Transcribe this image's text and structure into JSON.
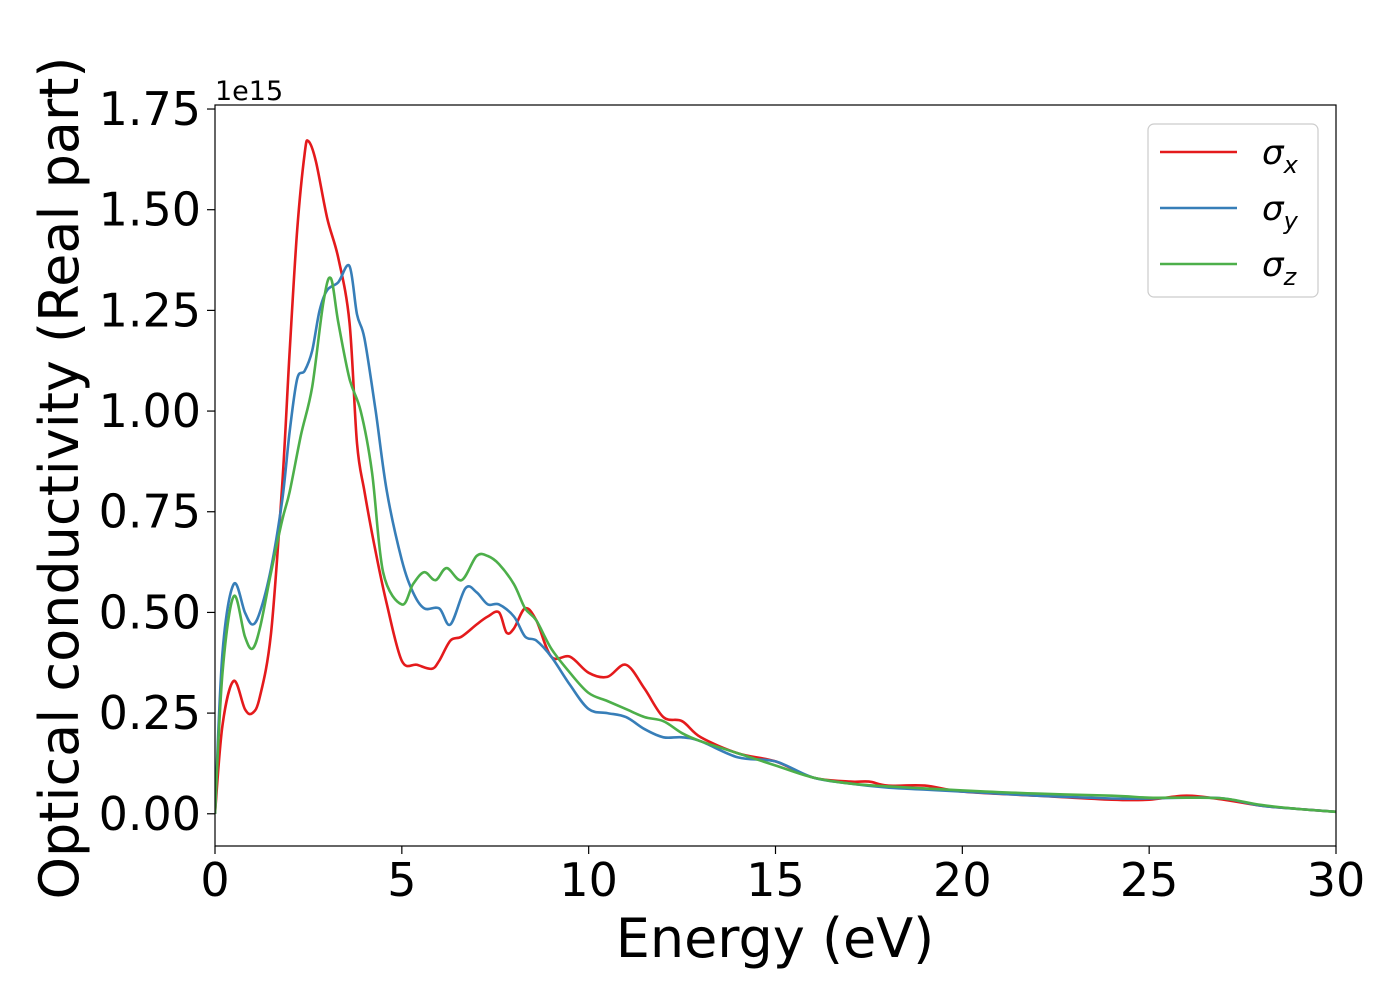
{
  "chart_data": {
    "type": "line",
    "xlabel": "Energy (eV)",
    "ylabel": "Optical conductivity (Real part)",
    "y_offset_label": "1e15",
    "xlim": [
      0,
      30
    ],
    "ylim": [
      -0.08,
      1.76
    ],
    "x_ticks": [
      0,
      5,
      10,
      15,
      20,
      25,
      30
    ],
    "x_tick_labels": [
      "0",
      "5",
      "10",
      "15",
      "20",
      "25",
      "30"
    ],
    "y_ticks": [
      0.0,
      0.25,
      0.5,
      0.75,
      1.0,
      1.25,
      1.5,
      1.75
    ],
    "y_tick_labels": [
      "0.00",
      "0.25",
      "0.50",
      "0.75",
      "1.00",
      "1.25",
      "1.50",
      "1.75"
    ],
    "grid": false,
    "legend_position": "top-right",
    "legend": [
      {
        "base": "σ",
        "sub": "x"
      },
      {
        "base": "σ",
        "sub": "y"
      },
      {
        "base": "σ",
        "sub": "z"
      }
    ],
    "series": [
      {
        "color": "#e41a1c",
        "x": [
          0,
          0.2,
          0.5,
          0.8,
          1.0,
          1.2,
          1.5,
          1.8,
          2.0,
          2.2,
          2.4,
          2.5,
          2.7,
          3.0,
          3.3,
          3.6,
          3.8,
          4.0,
          4.3,
          4.6,
          5.0,
          5.4,
          5.8,
          6.0,
          6.3,
          6.6,
          7.0,
          7.3,
          7.6,
          7.8,
          8.0,
          8.3,
          8.6,
          9.0,
          9.5,
          10.0,
          10.5,
          11.0,
          11.5,
          12.0,
          12.5,
          13.0,
          14.0,
          15.0,
          16.0,
          17.0,
          17.5,
          18.0,
          19.0,
          20.0,
          22.0,
          24.0,
          25.0,
          26.0,
          27.0,
          28.0,
          29.0,
          30.0
        ],
        "y": [
          0,
          0.22,
          0.33,
          0.26,
          0.25,
          0.29,
          0.45,
          0.82,
          1.15,
          1.45,
          1.64,
          1.67,
          1.62,
          1.48,
          1.38,
          1.22,
          0.92,
          0.8,
          0.65,
          0.52,
          0.38,
          0.37,
          0.36,
          0.38,
          0.43,
          0.44,
          0.47,
          0.49,
          0.5,
          0.45,
          0.46,
          0.51,
          0.48,
          0.39,
          0.39,
          0.35,
          0.34,
          0.37,
          0.31,
          0.24,
          0.23,
          0.19,
          0.15,
          0.13,
          0.09,
          0.08,
          0.08,
          0.07,
          0.07,
          0.055,
          0.045,
          0.035,
          0.035,
          0.045,
          0.035,
          0.02,
          0.012,
          0.005
        ]
      },
      {
        "color": "#377eb8",
        "x": [
          0,
          0.2,
          0.5,
          0.8,
          1.0,
          1.2,
          1.5,
          1.8,
          2.0,
          2.2,
          2.4,
          2.6,
          2.8,
          3.0,
          3.3,
          3.6,
          3.8,
          4.0,
          4.3,
          4.6,
          5.0,
          5.3,
          5.6,
          6.0,
          6.3,
          6.7,
          7.0,
          7.3,
          7.6,
          8.0,
          8.3,
          8.6,
          9.0,
          9.5,
          10.0,
          10.5,
          11.0,
          11.5,
          12.0,
          12.5,
          13.0,
          14.0,
          15.0,
          16.0,
          17.0,
          18.0,
          19.0,
          20.0,
          22.0,
          24.0,
          25.0,
          26.0,
          27.0,
          28.0,
          29.0,
          30.0
        ],
        "y": [
          0,
          0.4,
          0.57,
          0.5,
          0.47,
          0.5,
          0.61,
          0.78,
          0.95,
          1.08,
          1.1,
          1.15,
          1.25,
          1.3,
          1.32,
          1.36,
          1.24,
          1.18,
          1.0,
          0.8,
          0.63,
          0.55,
          0.51,
          0.51,
          0.47,
          0.56,
          0.55,
          0.52,
          0.52,
          0.49,
          0.44,
          0.43,
          0.39,
          0.32,
          0.26,
          0.25,
          0.24,
          0.21,
          0.19,
          0.19,
          0.18,
          0.14,
          0.13,
          0.09,
          0.075,
          0.065,
          0.06,
          0.055,
          0.045,
          0.038,
          0.038,
          0.04,
          0.038,
          0.02,
          0.012,
          0.005
        ]
      },
      {
        "color": "#4daf4a",
        "x": [
          0,
          0.2,
          0.5,
          0.8,
          1.0,
          1.2,
          1.5,
          1.8,
          2.0,
          2.3,
          2.6,
          2.9,
          3.1,
          3.3,
          3.6,
          3.9,
          4.2,
          4.5,
          5.0,
          5.3,
          5.6,
          5.9,
          6.2,
          6.6,
          7.0,
          7.3,
          7.6,
          8.0,
          8.3,
          8.6,
          9.0,
          9.5,
          10.0,
          10.5,
          11.0,
          11.5,
          12.0,
          12.5,
          13.0,
          14.0,
          15.0,
          16.0,
          17.0,
          18.0,
          19.0,
          20.0,
          22.0,
          24.0,
          25.0,
          26.0,
          27.0,
          28.0,
          29.0,
          30.0
        ],
        "y": [
          0,
          0.35,
          0.54,
          0.44,
          0.41,
          0.46,
          0.6,
          0.73,
          0.8,
          0.94,
          1.06,
          1.27,
          1.33,
          1.22,
          1.08,
          1.0,
          0.85,
          0.6,
          0.52,
          0.57,
          0.6,
          0.58,
          0.61,
          0.58,
          0.64,
          0.64,
          0.62,
          0.57,
          0.51,
          0.48,
          0.41,
          0.35,
          0.3,
          0.28,
          0.26,
          0.24,
          0.23,
          0.2,
          0.18,
          0.15,
          0.12,
          0.09,
          0.075,
          0.068,
          0.063,
          0.058,
          0.05,
          0.045,
          0.04,
          0.04,
          0.038,
          0.022,
          0.012,
          0.005
        ]
      }
    ]
  }
}
